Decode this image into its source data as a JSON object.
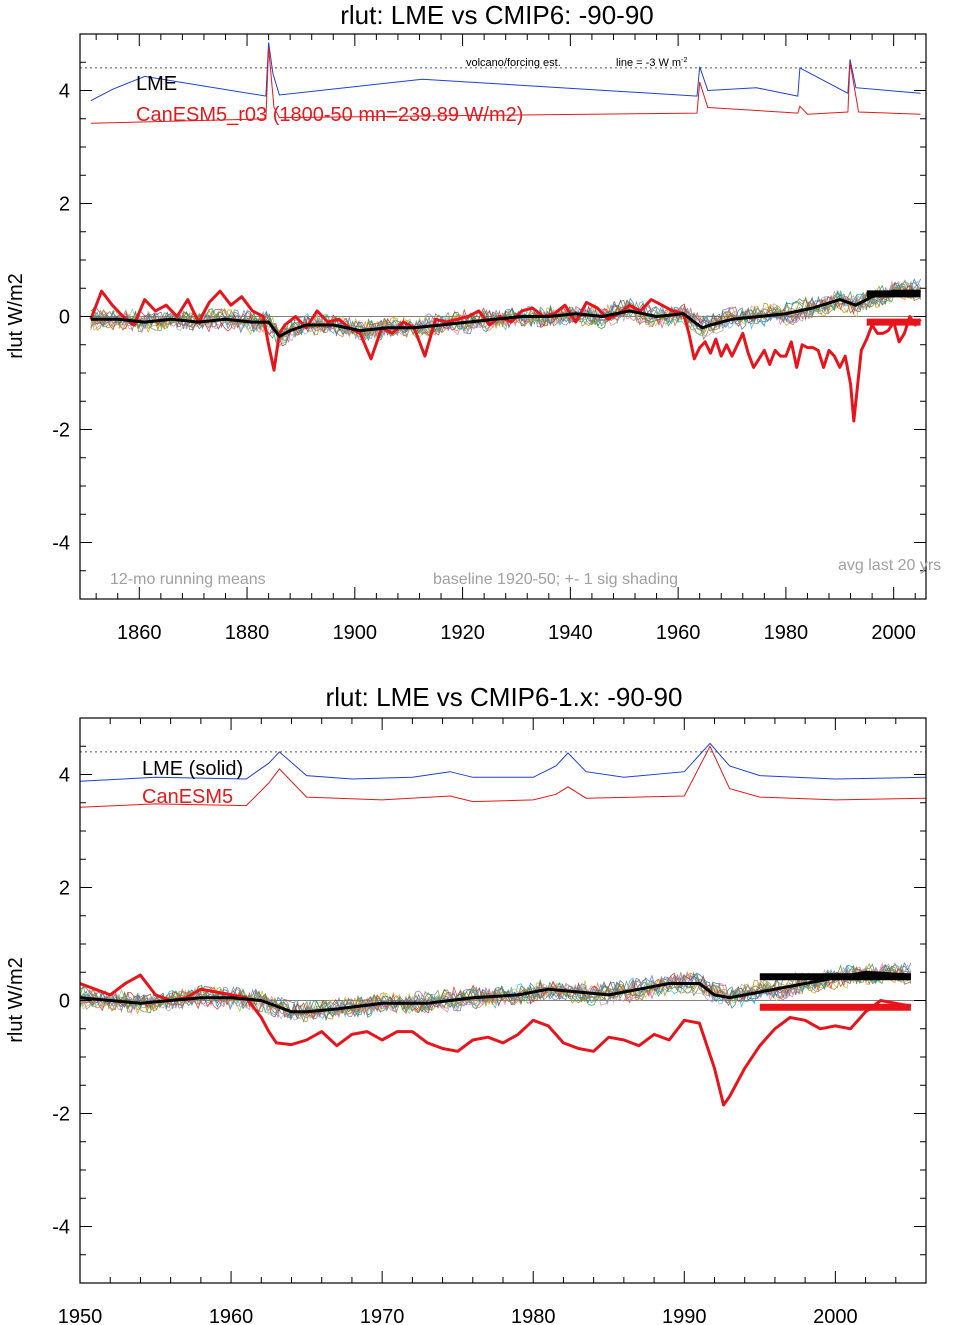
{
  "colors": {
    "lme": "#1f3fd6",
    "canesm_index": "#e41a1c",
    "canesm": "#e8141b",
    "ensemble_mean": "#000000",
    "zero_line": "#808080",
    "annotation_gray": "#a0a0a0",
    "member_palette": [
      "#1f77b4",
      "#2ca02c",
      "#ff7f0e",
      "#9467bd",
      "#17becf",
      "#bcbd22",
      "#8c564b",
      "#e377c2",
      "#7f7f7f",
      "#d62728",
      "#1a9850",
      "#4575b4",
      "#b8860b",
      "#aaaaaa"
    ]
  },
  "chart_data": [
    {
      "type": "line",
      "title": "rlut: LME vs CMIP6: -90-90",
      "ylabel": "rlut W/m2",
      "xlim": [
        1849,
        2006
      ],
      "ylim": [
        -5,
        5
      ],
      "xticks": [
        1860,
        1880,
        1900,
        1920,
        1940,
        1960,
        1980,
        2000
      ],
      "yticks": [
        -4,
        -2,
        0,
        2,
        4
      ],
      "ytick_labels": [
        "-4",
        "-2",
        "0",
        "2",
        "4"
      ],
      "grid": false,
      "legend_placement": "top-left",
      "legend": [
        "LME",
        "CanESM5_r03 (1800-50 mn=239.89 W/m2)"
      ],
      "annotations": {
        "forcing": "volcano/forcing est.",
        "line_note": "line = -3 W m",
        "line_note_sup": "-2",
        "left": "12-mo running means",
        "center": "baseline 1920-50; +- 1 sig shading",
        "right": "avg last 20 yrs"
      },
      "dotted_line_y": 4.4,
      "volcanic_index_lme": {
        "base": 3.88,
        "x": [
          1851,
          1855,
          1861,
          1883.5,
          1884,
          1884.8,
          1886,
          1903,
          1912.5,
          1963.5,
          1964,
          1965.5,
          1974.5,
          1982.2,
          1982.6,
          1991.5,
          1991.9,
          1993,
          2005
        ],
        "y": [
          3.82,
          4.02,
          4.25,
          3.9,
          4.85,
          4.3,
          3.92,
          4.1,
          4.2,
          3.9,
          4.42,
          4.0,
          4.05,
          3.9,
          4.4,
          3.95,
          4.55,
          4.05,
          3.95
        ]
      },
      "volcanic_index_canesm": {
        "x": [
          1851,
          1883.5,
          1884,
          1885,
          1886,
          1963.5,
          1964,
          1965.5,
          1982.2,
          1982.6,
          1984,
          1991.5,
          1991.9,
          1993.5,
          2005
        ],
        "y": [
          3.42,
          3.5,
          4.75,
          3.7,
          3.52,
          3.6,
          4.15,
          3.7,
          3.6,
          3.72,
          3.58,
          3.62,
          4.5,
          3.62,
          3.58
        ]
      },
      "canesm": {
        "x": [
          1851,
          1853,
          1855,
          1857,
          1859,
          1861,
          1863,
          1865,
          1867,
          1869,
          1871,
          1873,
          1875,
          1877,
          1879,
          1881,
          1883,
          1884,
          1885,
          1886,
          1887,
          1889,
          1891,
          1893,
          1895,
          1897,
          1899,
          1901,
          1903,
          1905,
          1907,
          1909,
          1911,
          1913,
          1915,
          1917,
          1919,
          1921,
          1923,
          1925,
          1927,
          1929,
          1931,
          1933,
          1935,
          1937,
          1939,
          1941,
          1943,
          1945,
          1947,
          1949,
          1951,
          1953,
          1955,
          1957,
          1959,
          1961,
          1962,
          1963,
          1964,
          1965,
          1966,
          1967,
          1968,
          1969,
          1970,
          1971,
          1972,
          1973,
          1974,
          1975,
          1976,
          1977,
          1978,
          1979,
          1980,
          1981,
          1982,
          1983,
          1984,
          1985,
          1986,
          1987,
          1988,
          1989,
          1990,
          1991,
          1992,
          1992.6,
          1993,
          1994,
          1995,
          1996,
          1997,
          1998,
          1999,
          2000,
          2001,
          2002,
          2003,
          2004,
          2005
        ],
        "y": [
          -0.05,
          0.45,
          0.2,
          0.0,
          -0.15,
          0.3,
          0.1,
          0.2,
          0.0,
          0.3,
          -0.1,
          0.25,
          0.45,
          0.2,
          0.35,
          0.1,
          0.0,
          -0.5,
          -0.95,
          -0.3,
          -0.15,
          0.0,
          -0.2,
          0.1,
          -0.1,
          -0.05,
          -0.2,
          -0.3,
          -0.75,
          -0.2,
          -0.3,
          -0.1,
          -0.2,
          -0.7,
          -0.05,
          -0.1,
          -0.05,
          0.0,
          0.1,
          -0.15,
          0.0,
          -0.1,
          0.1,
          0.15,
          0.0,
          0.05,
          0.2,
          -0.1,
          0.25,
          0.15,
          -0.05,
          0.05,
          0.2,
          0.1,
          0.3,
          0.2,
          0.1,
          0.05,
          -0.3,
          -0.75,
          -0.55,
          -0.45,
          -0.65,
          -0.4,
          -0.7,
          -0.5,
          -0.7,
          -0.5,
          -0.3,
          -0.65,
          -0.9,
          -0.75,
          -0.6,
          -0.85,
          -0.6,
          -0.7,
          -0.7,
          -0.45,
          -0.9,
          -0.5,
          -0.55,
          -0.55,
          -0.6,
          -0.9,
          -0.6,
          -0.7,
          -0.9,
          -0.7,
          -1.2,
          -1.85,
          -1.5,
          -0.6,
          -0.4,
          -0.15,
          -0.3,
          -0.3,
          -0.25,
          -0.1,
          -0.45,
          -0.3,
          0.0,
          -0.15,
          -0.05
        ]
      },
      "ensemble_mean": {
        "x": [
          1851,
          1856,
          1861,
          1866,
          1871,
          1876,
          1881,
          1884,
          1886,
          1888,
          1891,
          1896,
          1901,
          1906,
          1911,
          1916,
          1921,
          1926,
          1931,
          1936,
          1941,
          1946,
          1951,
          1956,
          1961,
          1963,
          1964.5,
          1966,
          1970,
          1975,
          1980,
          1985,
          1990,
          1993,
          1996,
          2000,
          2005
        ],
        "y": [
          -0.05,
          -0.05,
          -0.1,
          -0.05,
          -0.1,
          -0.05,
          -0.1,
          -0.1,
          -0.35,
          -0.25,
          -0.15,
          -0.15,
          -0.25,
          -0.2,
          -0.2,
          -0.15,
          -0.1,
          -0.05,
          0.0,
          0.0,
          0.05,
          0.0,
          0.1,
          0.0,
          0.05,
          -0.1,
          -0.2,
          -0.15,
          -0.05,
          0.0,
          0.05,
          0.15,
          0.3,
          0.2,
          0.35,
          0.45,
          0.45
        ]
      },
      "avg_last20": {
        "x": [
          1995,
          2005
        ],
        "ensemble": 0.4,
        "canesm": -0.1
      }
    },
    {
      "type": "line",
      "title": "rlut: LME vs CMIP6-1.x: -90-90",
      "ylabel": "rlut W/m2",
      "xlim": [
        1950,
        2006
      ],
      "ylim": [
        -5,
        5
      ],
      "xticks": [
        1950,
        1960,
        1970,
        1980,
        1990,
        2000
      ],
      "yticks": [
        -4,
        -2,
        0,
        2,
        4
      ],
      "ytick_labels": [
        "-4",
        "-2",
        "0",
        "2",
        "4"
      ],
      "grid": false,
      "legend_placement": "top-left",
      "legend": [
        "LME (solid)",
        "CanESM5"
      ],
      "dotted_line_y": 4.4,
      "volcanic_index_lme": {
        "x": [
          1950,
          1955,
          1961,
          1962.5,
          1963.2,
          1965,
          1968,
          1972,
          1974.5,
          1976,
          1980,
          1981.5,
          1982.3,
          1983.5,
          1986,
          1990,
          1991.7,
          1993,
          1995,
          2000,
          2006
        ],
        "y": [
          3.88,
          3.95,
          3.92,
          4.2,
          4.4,
          3.98,
          3.92,
          3.95,
          4.05,
          3.95,
          3.95,
          4.15,
          4.38,
          4.05,
          3.95,
          4.05,
          4.55,
          4.15,
          3.98,
          3.92,
          3.95
        ]
      },
      "volcanic_index_canesm": {
        "x": [
          1950,
          1955,
          1961,
          1962.5,
          1963.2,
          1965,
          1970,
          1974.5,
          1976,
          1980,
          1981.5,
          1982.3,
          1983.5,
          1990,
          1991.7,
          1993,
          1995,
          2000,
          2006
        ],
        "y": [
          3.42,
          3.48,
          3.45,
          3.85,
          4.1,
          3.6,
          3.55,
          3.62,
          3.52,
          3.55,
          3.65,
          3.78,
          3.58,
          3.62,
          4.5,
          3.75,
          3.6,
          3.55,
          3.58
        ]
      },
      "canesm": {
        "x": [
          1950,
          1951,
          1952,
          1953,
          1954,
          1955,
          1956,
          1957,
          1958,
          1959,
          1960,
          1961,
          1962,
          1962.5,
          1963,
          1964,
          1965,
          1966,
          1967,
          1968,
          1969,
          1970,
          1971,
          1972,
          1973,
          1974,
          1975,
          1976,
          1977,
          1978,
          1979,
          1980,
          1981,
          1982,
          1983,
          1984,
          1985,
          1986,
          1987,
          1988,
          1989,
          1990,
          1991,
          1992,
          1992.6,
          1993,
          1994,
          1995,
          1996,
          1997,
          1998,
          1999,
          2000,
          2001,
          2002,
          2003,
          2004,
          2005
        ],
        "y": [
          0.3,
          0.2,
          0.1,
          0.3,
          0.45,
          0.1,
          0.0,
          0.05,
          0.2,
          0.15,
          0.1,
          0.05,
          -0.3,
          -0.55,
          -0.75,
          -0.78,
          -0.7,
          -0.55,
          -0.8,
          -0.6,
          -0.55,
          -0.7,
          -0.55,
          -0.55,
          -0.75,
          -0.85,
          -0.9,
          -0.7,
          -0.65,
          -0.75,
          -0.6,
          -0.35,
          -0.45,
          -0.75,
          -0.85,
          -0.9,
          -0.65,
          -0.7,
          -0.8,
          -0.6,
          -0.7,
          -0.35,
          -0.4,
          -1.2,
          -1.85,
          -1.7,
          -1.2,
          -0.8,
          -0.5,
          -0.3,
          -0.35,
          -0.5,
          -0.45,
          -0.5,
          -0.2,
          0.0,
          -0.05,
          -0.1
        ]
      },
      "ensemble_mean": {
        "x": [
          1950,
          1952,
          1954,
          1956,
          1958,
          1960,
          1962,
          1963,
          1964,
          1965,
          1967,
          1970,
          1973,
          1976,
          1979,
          1981,
          1983,
          1985,
          1987,
          1989,
          1991,
          1992,
          1993,
          1994,
          1996,
          1998,
          2000,
          2002,
          2005
        ],
        "y": [
          0.05,
          0.0,
          -0.05,
          0.0,
          0.05,
          0.05,
          0.0,
          -0.1,
          -0.2,
          -0.2,
          -0.15,
          -0.05,
          -0.05,
          0.05,
          0.1,
          0.2,
          0.15,
          0.1,
          0.2,
          0.3,
          0.3,
          0.1,
          0.05,
          0.1,
          0.2,
          0.3,
          0.4,
          0.5,
          0.45
        ]
      },
      "avg_last20": {
        "x": [
          1995,
          2005
        ],
        "ensemble": 0.42,
        "canesm": -0.12
      }
    }
  ]
}
